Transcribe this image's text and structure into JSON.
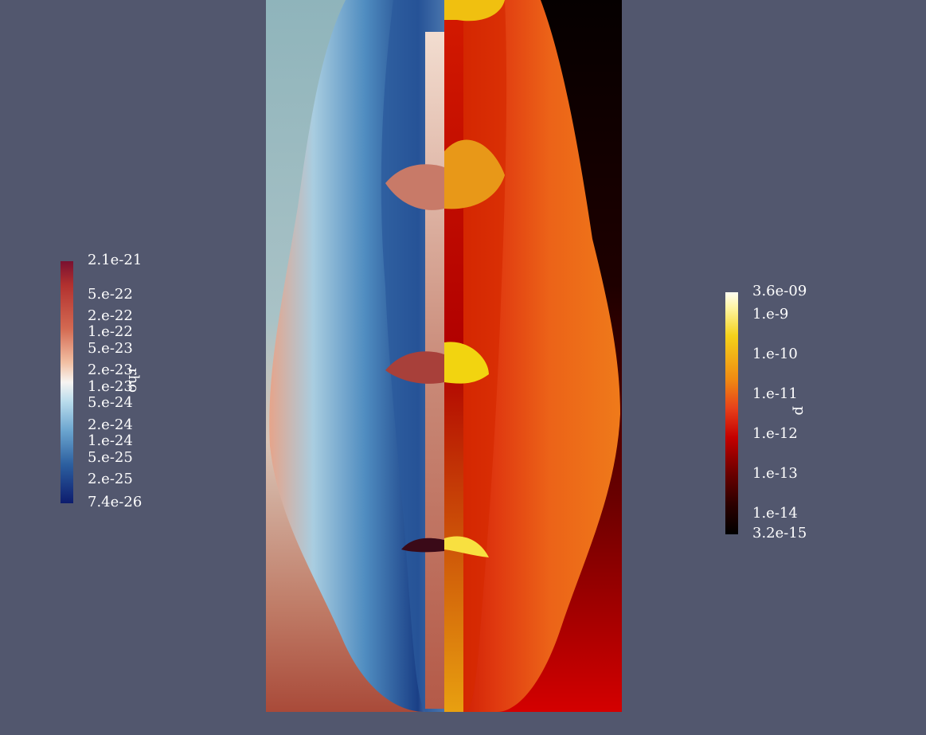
{
  "rho_colorbar": {
    "title": "rho",
    "ticks": [
      "2.1e-21",
      "5.e-22",
      "2.e-22",
      "1.e-22",
      "5.e-23",
      "2.e-23",
      "1.e-23",
      "5.e-24",
      "2.e-24",
      "1.e-24",
      "5.e-25",
      "2.e-25",
      "7.4e-26"
    ]
  },
  "p_colorbar": {
    "title": "p",
    "ticks": [
      "3.6e-09",
      "1.e-9",
      "1.e-10",
      "1.e-11",
      "1.e-12",
      "1.e-13",
      "1.e-14",
      "3.2e-15"
    ]
  },
  "colors": {
    "background": "#52576e",
    "rho_max": "#7a1030",
    "rho_mid": "#f7f5f2",
    "rho_min": "#0d1c6e",
    "p_max": "#fffef2",
    "p_mid": "#e7401a",
    "p_min": "#000000"
  }
}
